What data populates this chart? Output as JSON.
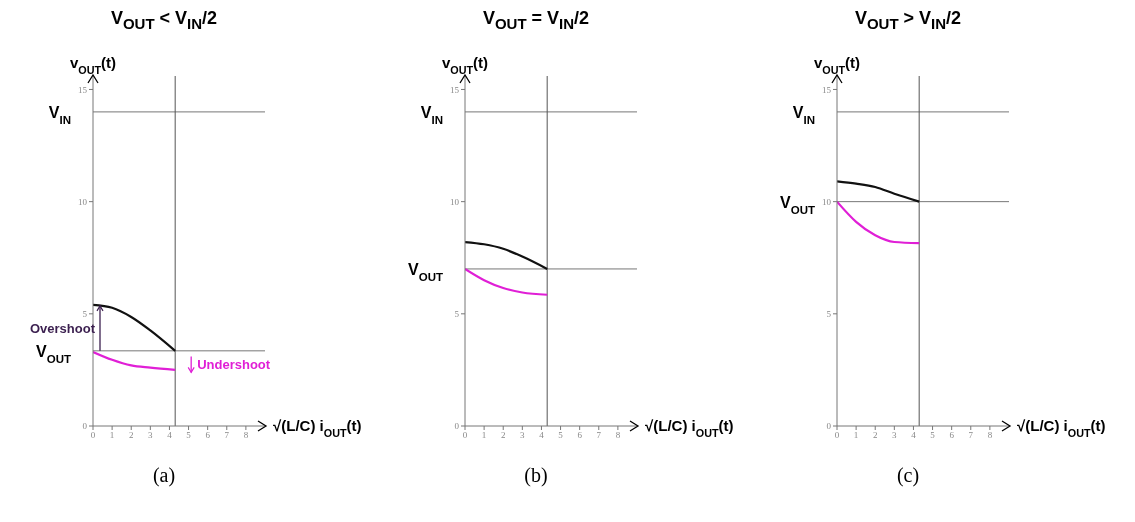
{
  "chart_data": [
    {
      "type": "line",
      "title": "V$_{OUT}$ < V$_{IN}$/2",
      "xlabel": "√(L/C) i$_{OUT}$(t)",
      "ylabel": "v$_{OUT}$(t)",
      "x": [
        0,
        1,
        2,
        3,
        4.3
      ],
      "xlim": [
        0,
        9
      ],
      "ylim": [
        0,
        15.6
      ],
      "xticks": [
        0,
        1,
        2,
        3,
        4,
        5,
        6,
        7,
        8
      ],
      "yticks": [
        0,
        5,
        10,
        15
      ],
      "series": [
        {
          "color": "#111111",
          "values": [
            5.4,
            5.27,
            4.86,
            4.26,
            3.35
          ]
        },
        {
          "color": "#e01fd6",
          "values": [
            3.3,
            2.95,
            2.7,
            2.6,
            2.5
          ]
        }
      ],
      "ref_lines": [
        {
          "axis": "y",
          "value": 14,
          "label": "V$_{IN}$"
        },
        {
          "axis": "y",
          "value": 3.35,
          "label": "V$_{OUT}$"
        },
        {
          "axis": "x",
          "value": 4.3
        }
      ],
      "annotations": [
        "Overshoot",
        "Undershoot",
        "(a)"
      ]
    },
    {
      "type": "line",
      "title": "V$_{OUT}$ = V$_{IN}$/2",
      "xlabel": "√(L/C) i$_{OUT}$(t)",
      "ylabel": "v$_{OUT}$(t)",
      "x": [
        0,
        1,
        2,
        3,
        4.3
      ],
      "xlim": [
        0,
        9
      ],
      "ylim": [
        0,
        15.6
      ],
      "xticks": [
        0,
        1,
        2,
        3,
        4,
        5,
        6,
        7,
        8
      ],
      "yticks": [
        0,
        5,
        10,
        15
      ],
      "series": [
        {
          "color": "#111111",
          "values": [
            8.2,
            8.1,
            7.9,
            7.55,
            7.0
          ]
        },
        {
          "color": "#e01fd6",
          "values": [
            7.0,
            6.5,
            6.15,
            5.95,
            5.85
          ]
        }
      ],
      "ref_lines": [
        {
          "axis": "y",
          "value": 14,
          "label": "V$_{IN}$"
        },
        {
          "axis": "y",
          "value": 7.0,
          "label": "V$_{OUT}$"
        },
        {
          "axis": "x",
          "value": 4.3
        }
      ],
      "annotations": [
        "(b)"
      ]
    },
    {
      "type": "line",
      "title": "V$_{OUT}$ > V$_{IN}$/2",
      "xlabel": "√(L/C) i$_{OUT}$(t)",
      "ylabel": "v$_{OUT}$(t)",
      "x": [
        0,
        1,
        2,
        3,
        4.3
      ],
      "xlim": [
        0,
        9
      ],
      "ylim": [
        0,
        15.6
      ],
      "xticks": [
        0,
        1,
        2,
        3,
        4,
        5,
        6,
        7,
        8
      ],
      "yticks": [
        0,
        5,
        10,
        15
      ],
      "series": [
        {
          "color": "#111111",
          "values": [
            10.9,
            10.8,
            10.65,
            10.35,
            10.0
          ]
        },
        {
          "color": "#e01fd6",
          "values": [
            10.0,
            9.1,
            8.5,
            8.2,
            8.15
          ]
        }
      ],
      "ref_lines": [
        {
          "axis": "y",
          "value": 14,
          "label": "V$_{IN}$"
        },
        {
          "axis": "y",
          "value": 10.0,
          "label": "V$_{OUT}$"
        },
        {
          "axis": "x",
          "value": 4.3
        }
      ],
      "annotations": [
        "(c)"
      ]
    }
  ]
}
